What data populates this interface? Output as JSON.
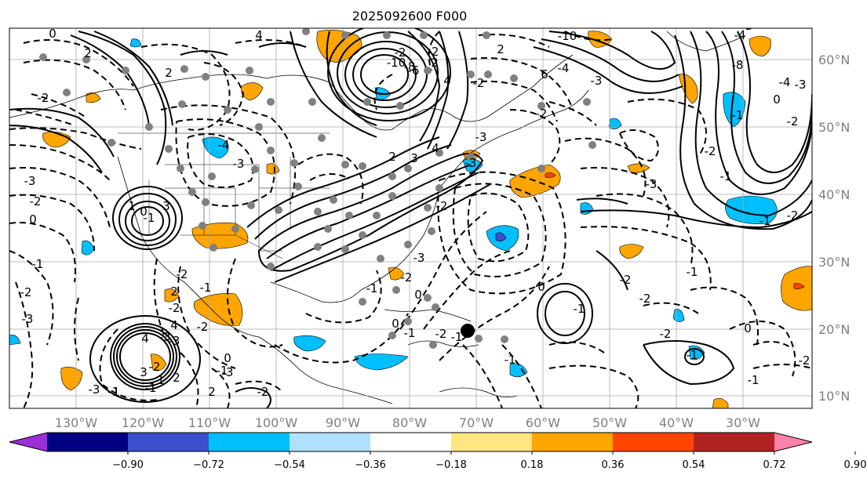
{
  "title": "2025092600 F000",
  "lon_labels": [
    "130°W",
    "120°W",
    "110°W",
    "100°W",
    "90°W",
    "80°W",
    "70°W",
    "60°W",
    "50°W",
    "40°W",
    "30°W"
  ],
  "lat_labels": [
    "60°N",
    "50°N",
    "40°N",
    "30°N",
    "20°N",
    "10°N"
  ],
  "colorbar": {
    "colors": [
      "#9b30d9",
      "#000080",
      "#3b4fcf",
      "#00bfff",
      "#b0e0ff",
      "#ffffff",
      "#ffe680",
      "#ffa500",
      "#ff4500",
      "#b22222",
      "#ff82ab"
    ],
    "tick_labels": [
      "−0.90",
      "−0.72",
      "−0.54",
      "−0.36",
      "−0.18",
      "0.18",
      "0.36",
      "0.54",
      "0.72",
      "0.90"
    ]
  },
  "contour_labels": [
    "0",
    "2",
    "4",
    "2",
    "-2",
    "-3",
    "-2",
    "0",
    "-1",
    "-2",
    "-3",
    "1",
    "3",
    "-2",
    "-1",
    "4",
    "-4",
    "-3",
    "2",
    "-2",
    "-2",
    "-1",
    "0",
    "1",
    "-1",
    "2",
    "-2",
    "-3",
    "-2",
    "-3",
    "-2",
    "0",
    "-1",
    "0",
    "-1",
    "-2",
    "-1",
    "-1",
    "0",
    "-1",
    "-2",
    "-1",
    "-10",
    "-8",
    "-6",
    "-2",
    "-2",
    "2",
    "-2",
    "-3",
    "-2",
    "-4",
    "-3",
    "-3",
    "-1",
    "0",
    "-4",
    "-3",
    "-2",
    "-2",
    "-1",
    "-1",
    "-2",
    "-2",
    "-2",
    "-1",
    "0",
    "-1",
    "-2",
    "-3",
    "-4",
    "-8",
    "-10",
    "6",
    "4",
    "2",
    "2",
    "3",
    "4",
    "-3",
    "-2",
    "1",
    "2",
    "3",
    "4",
    "-3",
    "-1",
    "0",
    "-3",
    "-3",
    "-1",
    "0"
  ]
}
